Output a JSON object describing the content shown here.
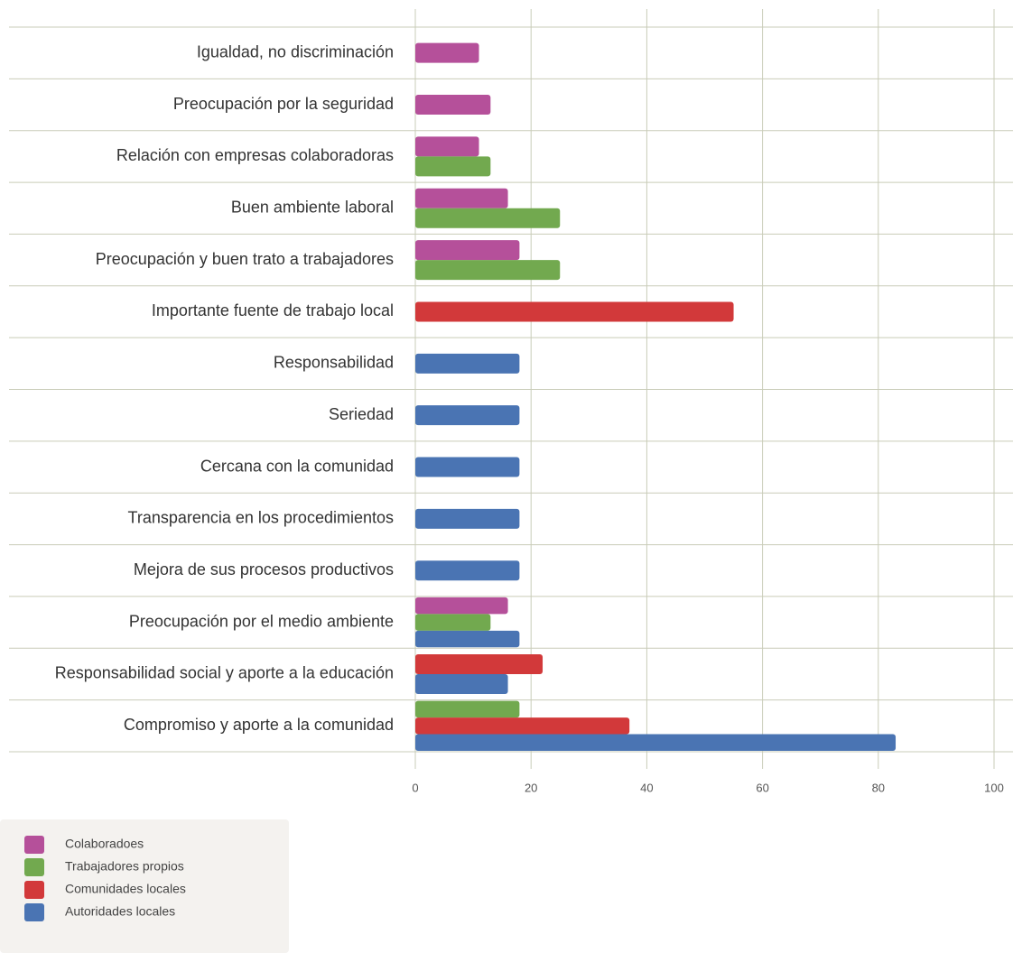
{
  "chart_data": {
    "type": "barh",
    "categories": [
      "Igualdad, no discriminación",
      "Preocupación por la seguridad",
      "Relación con empresas colaboradoras",
      "Buen ambiente laboral",
      "Preocupación y buen trato a trabajadores",
      "Importante fuente de trabajo local",
      "Responsabilidad",
      "Seriedad",
      "Cercana con la comunidad",
      "Transparencia en los procedimientos",
      "Mejora de sus procesos productivos",
      "Preocupación por el medio ambiente",
      "Responsabilidad social y aporte a la educación",
      "Compromiso y aporte a la comunidad"
    ],
    "series": [
      {
        "name": "Colaboradoes",
        "color": "#b5509a",
        "values": [
          11,
          13,
          11,
          16,
          18,
          null,
          null,
          null,
          null,
          null,
          null,
          16,
          null,
          null
        ]
      },
      {
        "name": "Trabajadores propios",
        "color": "#72a94f",
        "values": [
          null,
          null,
          13,
          25,
          25,
          null,
          null,
          null,
          null,
          null,
          null,
          13,
          null,
          18
        ]
      },
      {
        "name": "Comunidades locales",
        "color": "#d2393a",
        "values": [
          null,
          null,
          null,
          null,
          null,
          55,
          null,
          null,
          null,
          null,
          null,
          null,
          22,
          37
        ]
      },
      {
        "name": "Autoridades locales",
        "color": "#4a74b3",
        "values": [
          null,
          null,
          null,
          null,
          null,
          null,
          18,
          18,
          18,
          18,
          18,
          18,
          16,
          83
        ]
      }
    ],
    "xlim": [
      0,
      100
    ],
    "xticks": [
      0,
      20,
      40,
      60,
      80,
      100
    ],
    "grid": true
  }
}
